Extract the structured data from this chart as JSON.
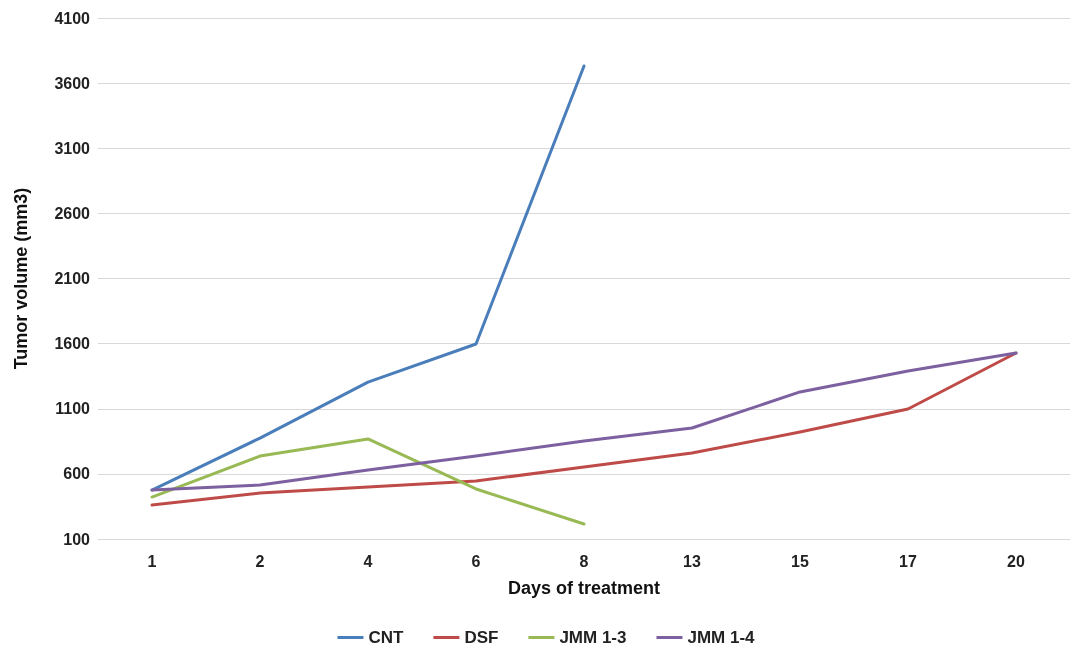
{
  "chart_data": {
    "type": "line",
    "xlabel": "Days of treatment",
    "ylabel": "Tumor volume (mm3)",
    "categories": [
      "1",
      "2",
      "4",
      "6",
      "8",
      "13",
      "15",
      "17",
      "20"
    ],
    "series": [
      {
        "name": "CNT",
        "color": "#4a7ebb",
        "values": [
          476,
          875,
          1305,
          1597,
          3732,
          null,
          null,
          null,
          null
        ]
      },
      {
        "name": "DSF",
        "color": "#be4b48",
        "values": [
          361,
          453,
          499,
          545,
          653,
          760,
          921,
          1098,
          1528
        ]
      },
      {
        "name": "JMM 1-3",
        "color": "#98b954",
        "values": [
          422,
          737,
          868,
          484,
          215,
          null,
          null,
          null,
          null
        ]
      },
      {
        "name": "JMM 1-4",
        "color": "#7d60a0",
        "values": [
          476,
          515,
          630,
          737,
          852,
          952,
          1229,
          1390,
          1528
        ]
      }
    ],
    "ylim": [
      100,
      4100
    ],
    "yticks": [
      100,
      600,
      1100,
      1600,
      2100,
      2600,
      3100,
      3600,
      4100
    ],
    "grid": "y",
    "legend": "bottom",
    "marker": "none",
    "line_style": "solid"
  }
}
